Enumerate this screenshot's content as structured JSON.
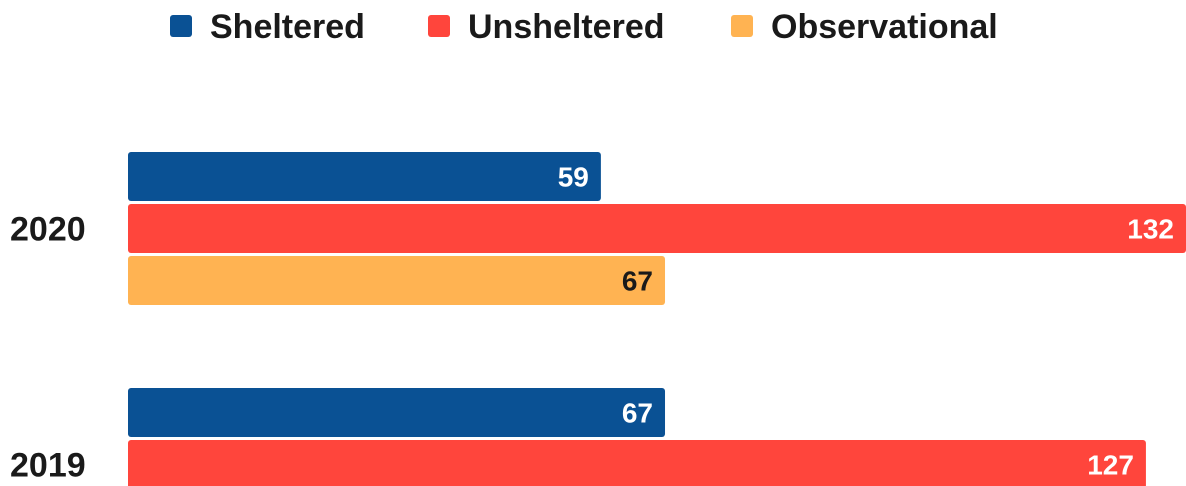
{
  "chart_data": {
    "type": "bar",
    "orientation": "horizontal",
    "categories": [
      "2020",
      "2019"
    ],
    "series": [
      {
        "name": "Sheltered",
        "color": "#0a5194",
        "label_color": "#ffffff",
        "values": [
          59,
          67
        ]
      },
      {
        "name": "Unsheltered",
        "color": "#ff453c",
        "label_color": "#ffffff",
        "values": [
          132,
          127
        ]
      },
      {
        "name": "Observational",
        "color": "#ffb352",
        "label_color": "#1a1a1a",
        "values": [
          67,
          null
        ]
      }
    ],
    "title": "",
    "xlabel": "",
    "ylabel": "",
    "xlim": [
      0,
      132
    ],
    "grid": false,
    "legend_position": "top-center"
  }
}
